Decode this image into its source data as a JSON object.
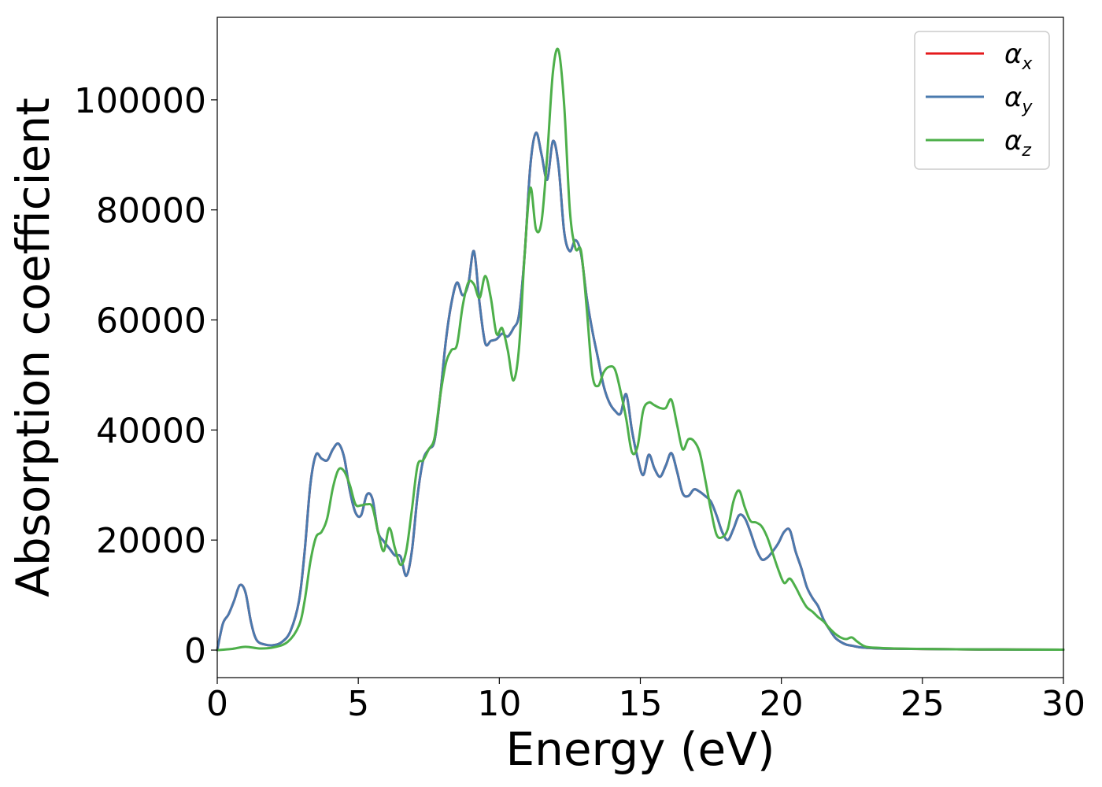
{
  "chart_data": {
    "type": "line",
    "title": "",
    "xlabel": "Energy (eV)",
    "ylabel": "Absorption coefficient",
    "xlim": [
      0,
      30
    ],
    "ylim": [
      -5000,
      115000
    ],
    "xticks": [
      0,
      5,
      10,
      15,
      20,
      25,
      30
    ],
    "xtick_labels": [
      "0",
      "5",
      "10",
      "15",
      "20",
      "25",
      "30"
    ],
    "yticks": [
      0,
      20000,
      40000,
      60000,
      80000,
      100000
    ],
    "ytick_labels": [
      "0",
      "20000",
      "40000",
      "60000",
      "80000",
      "100000"
    ],
    "grid": false,
    "legend_position": "top-right",
    "series": [
      {
        "name": "α",
        "subscript": "x",
        "color": "#e41a1c",
        "x": [
          0,
          0.2,
          0.4,
          0.6,
          0.8,
          1.0,
          1.2,
          1.4,
          1.7,
          2.0,
          2.3,
          2.6,
          2.9,
          3.1,
          3.3,
          3.5,
          3.7,
          3.9,
          4.1,
          4.3,
          4.5,
          4.7,
          4.9,
          5.1,
          5.3,
          5.5,
          5.7,
          5.9,
          6.1,
          6.3,
          6.5,
          6.7,
          6.9,
          7.1,
          7.3,
          7.5,
          7.7,
          7.9,
          8.1,
          8.3,
          8.5,
          8.7,
          8.9,
          9.1,
          9.3,
          9.5,
          9.7,
          9.9,
          10.1,
          10.3,
          10.5,
          10.7,
          10.9,
          11.1,
          11.3,
          11.5,
          11.7,
          11.9,
          12.1,
          12.3,
          12.5,
          12.7,
          12.9,
          13.1,
          13.3,
          13.5,
          13.7,
          13.9,
          14.1,
          14.3,
          14.5,
          14.7,
          14.9,
          15.1,
          15.3,
          15.5,
          15.7,
          15.9,
          16.1,
          16.3,
          16.5,
          16.7,
          16.9,
          17.1,
          17.3,
          17.5,
          17.7,
          17.9,
          18.1,
          18.3,
          18.5,
          18.7,
          18.9,
          19.1,
          19.3,
          19.5,
          19.7,
          19.9,
          20.1,
          20.3,
          20.5,
          20.7,
          20.9,
          21.1,
          21.3,
          21.5,
          21.7,
          21.9,
          22.1,
          22.3,
          22.5,
          22.8,
          23.1,
          23.5,
          24,
          25,
          27,
          30
        ],
        "y": [
          0,
          4800,
          6500,
          9000,
          11800,
          10500,
          5000,
          1800,
          1000,
          900,
          1500,
          3500,
          9000,
          18000,
          30000,
          35500,
          34800,
          34500,
          36500,
          37500,
          35000,
          29000,
          25000,
          24500,
          28200,
          27500,
          21500,
          19800,
          18500,
          17200,
          17000,
          13500,
          18000,
          28000,
          34500,
          36500,
          38000,
          46000,
          56000,
          63000,
          66800,
          64500,
          66500,
          72500,
          63000,
          55800,
          56200,
          56500,
          57500,
          57000,
          58500,
          61000,
          72000,
          88000,
          94000,
          90000,
          85500,
          92500,
          88000,
          76000,
          72500,
          74500,
          72000,
          64000,
          58000,
          53000,
          48000,
          45000,
          43500,
          43000,
          46500,
          40000,
          35000,
          31800,
          35500,
          33000,
          31500,
          33500,
          35800,
          32500,
          28500,
          28000,
          29200,
          28800,
          28000,
          27000,
          24500,
          21500,
          20000,
          22000,
          24500,
          24000,
          21500,
          18500,
          16500,
          16800,
          18000,
          19500,
          21500,
          21800,
          18000,
          15000,
          11500,
          9500,
          8000,
          5500,
          3800,
          2300,
          1500,
          1000,
          800,
          500,
          400,
          300,
          250,
          200,
          120,
          80
        ]
      },
      {
        "name": "α",
        "subscript": "y",
        "color": "#4a7aae",
        "x": [
          0,
          0.2,
          0.4,
          0.6,
          0.8,
          1.0,
          1.2,
          1.4,
          1.7,
          2.0,
          2.3,
          2.6,
          2.9,
          3.1,
          3.3,
          3.5,
          3.7,
          3.9,
          4.1,
          4.3,
          4.5,
          4.7,
          4.9,
          5.1,
          5.3,
          5.5,
          5.7,
          5.9,
          6.1,
          6.3,
          6.5,
          6.7,
          6.9,
          7.1,
          7.3,
          7.5,
          7.7,
          7.9,
          8.1,
          8.3,
          8.5,
          8.7,
          8.9,
          9.1,
          9.3,
          9.5,
          9.7,
          9.9,
          10.1,
          10.3,
          10.5,
          10.7,
          10.9,
          11.1,
          11.3,
          11.5,
          11.7,
          11.9,
          12.1,
          12.3,
          12.5,
          12.7,
          12.9,
          13.1,
          13.3,
          13.5,
          13.7,
          13.9,
          14.1,
          14.3,
          14.5,
          14.7,
          14.9,
          15.1,
          15.3,
          15.5,
          15.7,
          15.9,
          16.1,
          16.3,
          16.5,
          16.7,
          16.9,
          17.1,
          17.3,
          17.5,
          17.7,
          17.9,
          18.1,
          18.3,
          18.5,
          18.7,
          18.9,
          19.1,
          19.3,
          19.5,
          19.7,
          19.9,
          20.1,
          20.3,
          20.5,
          20.7,
          20.9,
          21.1,
          21.3,
          21.5,
          21.7,
          21.9,
          22.1,
          22.3,
          22.5,
          22.8,
          23.1,
          23.5,
          24,
          25,
          27,
          30
        ],
        "y": [
          0,
          4800,
          6500,
          9000,
          11800,
          10500,
          5000,
          1800,
          1000,
          900,
          1500,
          3500,
          9000,
          18000,
          30000,
          35500,
          34800,
          34500,
          36500,
          37500,
          35000,
          29000,
          25000,
          24500,
          28200,
          27500,
          21500,
          19800,
          18500,
          17200,
          17000,
          13500,
          18000,
          28000,
          34500,
          36500,
          38000,
          46000,
          56000,
          63000,
          66800,
          64500,
          66500,
          72500,
          63000,
          55800,
          56200,
          56500,
          57500,
          57000,
          58500,
          61000,
          72000,
          88000,
          94000,
          90000,
          85500,
          92500,
          88000,
          76000,
          72500,
          74500,
          72000,
          64000,
          58000,
          53000,
          48000,
          45000,
          43500,
          43000,
          46500,
          40000,
          35000,
          31800,
          35500,
          33000,
          31500,
          33500,
          35800,
          32500,
          28500,
          28000,
          29200,
          28800,
          28000,
          27000,
          24500,
          21500,
          20000,
          22000,
          24500,
          24000,
          21500,
          18500,
          16500,
          16800,
          18000,
          19500,
          21500,
          21800,
          18000,
          15000,
          11500,
          9500,
          8000,
          5500,
          3800,
          2300,
          1500,
          1000,
          800,
          500,
          400,
          300,
          250,
          200,
          120,
          80
        ]
      },
      {
        "name": "α",
        "subscript": "z",
        "color": "#4daf4a",
        "x": [
          0,
          0.5,
          1.0,
          1.5,
          2.0,
          2.5,
          2.9,
          3.1,
          3.3,
          3.5,
          3.7,
          3.9,
          4.1,
          4.3,
          4.5,
          4.7,
          4.9,
          5.1,
          5.3,
          5.5,
          5.7,
          5.9,
          6.1,
          6.3,
          6.5,
          6.7,
          6.9,
          7.1,
          7.3,
          7.5,
          7.7,
          7.9,
          8.1,
          8.3,
          8.5,
          8.7,
          8.9,
          9.1,
          9.3,
          9.5,
          9.7,
          9.9,
          10.1,
          10.3,
          10.5,
          10.7,
          10.9,
          11.1,
          11.3,
          11.5,
          11.7,
          11.9,
          12.1,
          12.3,
          12.5,
          12.7,
          12.9,
          13.1,
          13.3,
          13.5,
          13.7,
          13.9,
          14.1,
          14.3,
          14.5,
          14.7,
          14.9,
          15.1,
          15.3,
          15.5,
          15.7,
          15.9,
          16.1,
          16.3,
          16.5,
          16.7,
          16.9,
          17.1,
          17.3,
          17.5,
          17.7,
          17.9,
          18.1,
          18.3,
          18.5,
          18.7,
          18.9,
          19.1,
          19.3,
          19.5,
          19.7,
          19.9,
          20.1,
          20.3,
          20.5,
          20.7,
          20.9,
          21.1,
          21.3,
          21.5,
          21.7,
          21.9,
          22.1,
          22.3,
          22.5,
          22.7,
          23.0,
          23.5,
          24,
          25,
          27,
          30
        ],
        "y": [
          0,
          200,
          600,
          300,
          500,
          1500,
          4500,
          9000,
          16000,
          20500,
          21500,
          24000,
          29500,
          32800,
          32500,
          30000,
          26500,
          26300,
          26500,
          26000,
          21500,
          18000,
          22200,
          18500,
          15500,
          18000,
          25500,
          33500,
          34500,
          36500,
          38500,
          46000,
          52000,
          54500,
          55500,
          62500,
          66800,
          66500,
          64000,
          68000,
          64000,
          57500,
          58500,
          54500,
          49000,
          55000,
          72000,
          84000,
          76500,
          78000,
          90000,
          105000,
          109000,
          99000,
          80000,
          73000,
          72500,
          62000,
          50000,
          48000,
          50500,
          51500,
          51000,
          47000,
          42000,
          36000,
          37000,
          43500,
          45000,
          44500,
          44000,
          44000,
          45500,
          41000,
          36500,
          38300,
          38000,
          36000,
          31000,
          25500,
          21000,
          20500,
          22000,
          27000,
          29000,
          26000,
          23500,
          23200,
          22500,
          20500,
          17500,
          14500,
          12200,
          13000,
          11500,
          9500,
          7800,
          7000,
          6000,
          5200,
          4000,
          3000,
          2300,
          2000,
          2300,
          1500,
          600,
          400,
          300,
          200,
          120,
          80
        ]
      }
    ]
  }
}
